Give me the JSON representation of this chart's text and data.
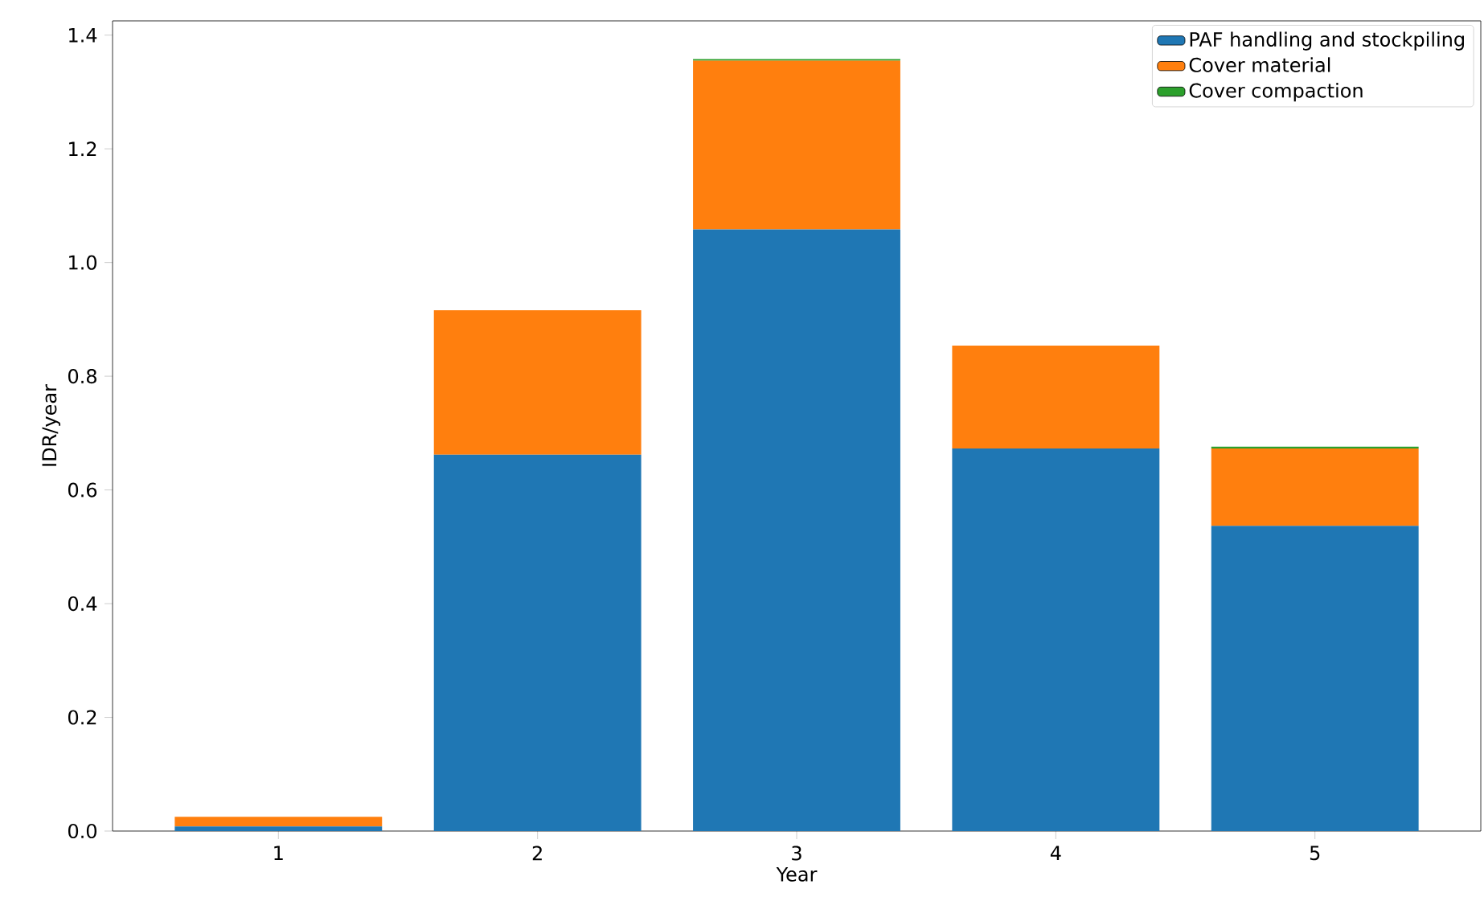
{
  "chart_data": {
    "type": "bar",
    "stacked": true,
    "xlabel": "Year",
    "ylabel": "IDR/year",
    "categories": [
      "1",
      "2",
      "3",
      "4",
      "5"
    ],
    "series": [
      {
        "name": "PAF handling and stockpiling",
        "color": "#1f77b4",
        "values": [
          0.008,
          0.662,
          1.058,
          0.673,
          0.537
        ]
      },
      {
        "name": "Cover material",
        "color": "#ff7f0e",
        "values": [
          0.017,
          0.254,
          0.297,
          0.181,
          0.136
        ]
      },
      {
        "name": "Cover compaction",
        "color": "#2ca02c",
        "values": [
          0,
          0,
          0.003,
          0,
          0.003
        ]
      }
    ],
    "ylim": [
      0,
      1.425
    ],
    "yticks": [
      {
        "value": 0,
        "label": "0.0"
      },
      0.2,
      0.4,
      0.6,
      0.8,
      {
        "value": 1,
        "label": "1.0"
      },
      1.2,
      1.4
    ],
    "legend": "top right"
  }
}
